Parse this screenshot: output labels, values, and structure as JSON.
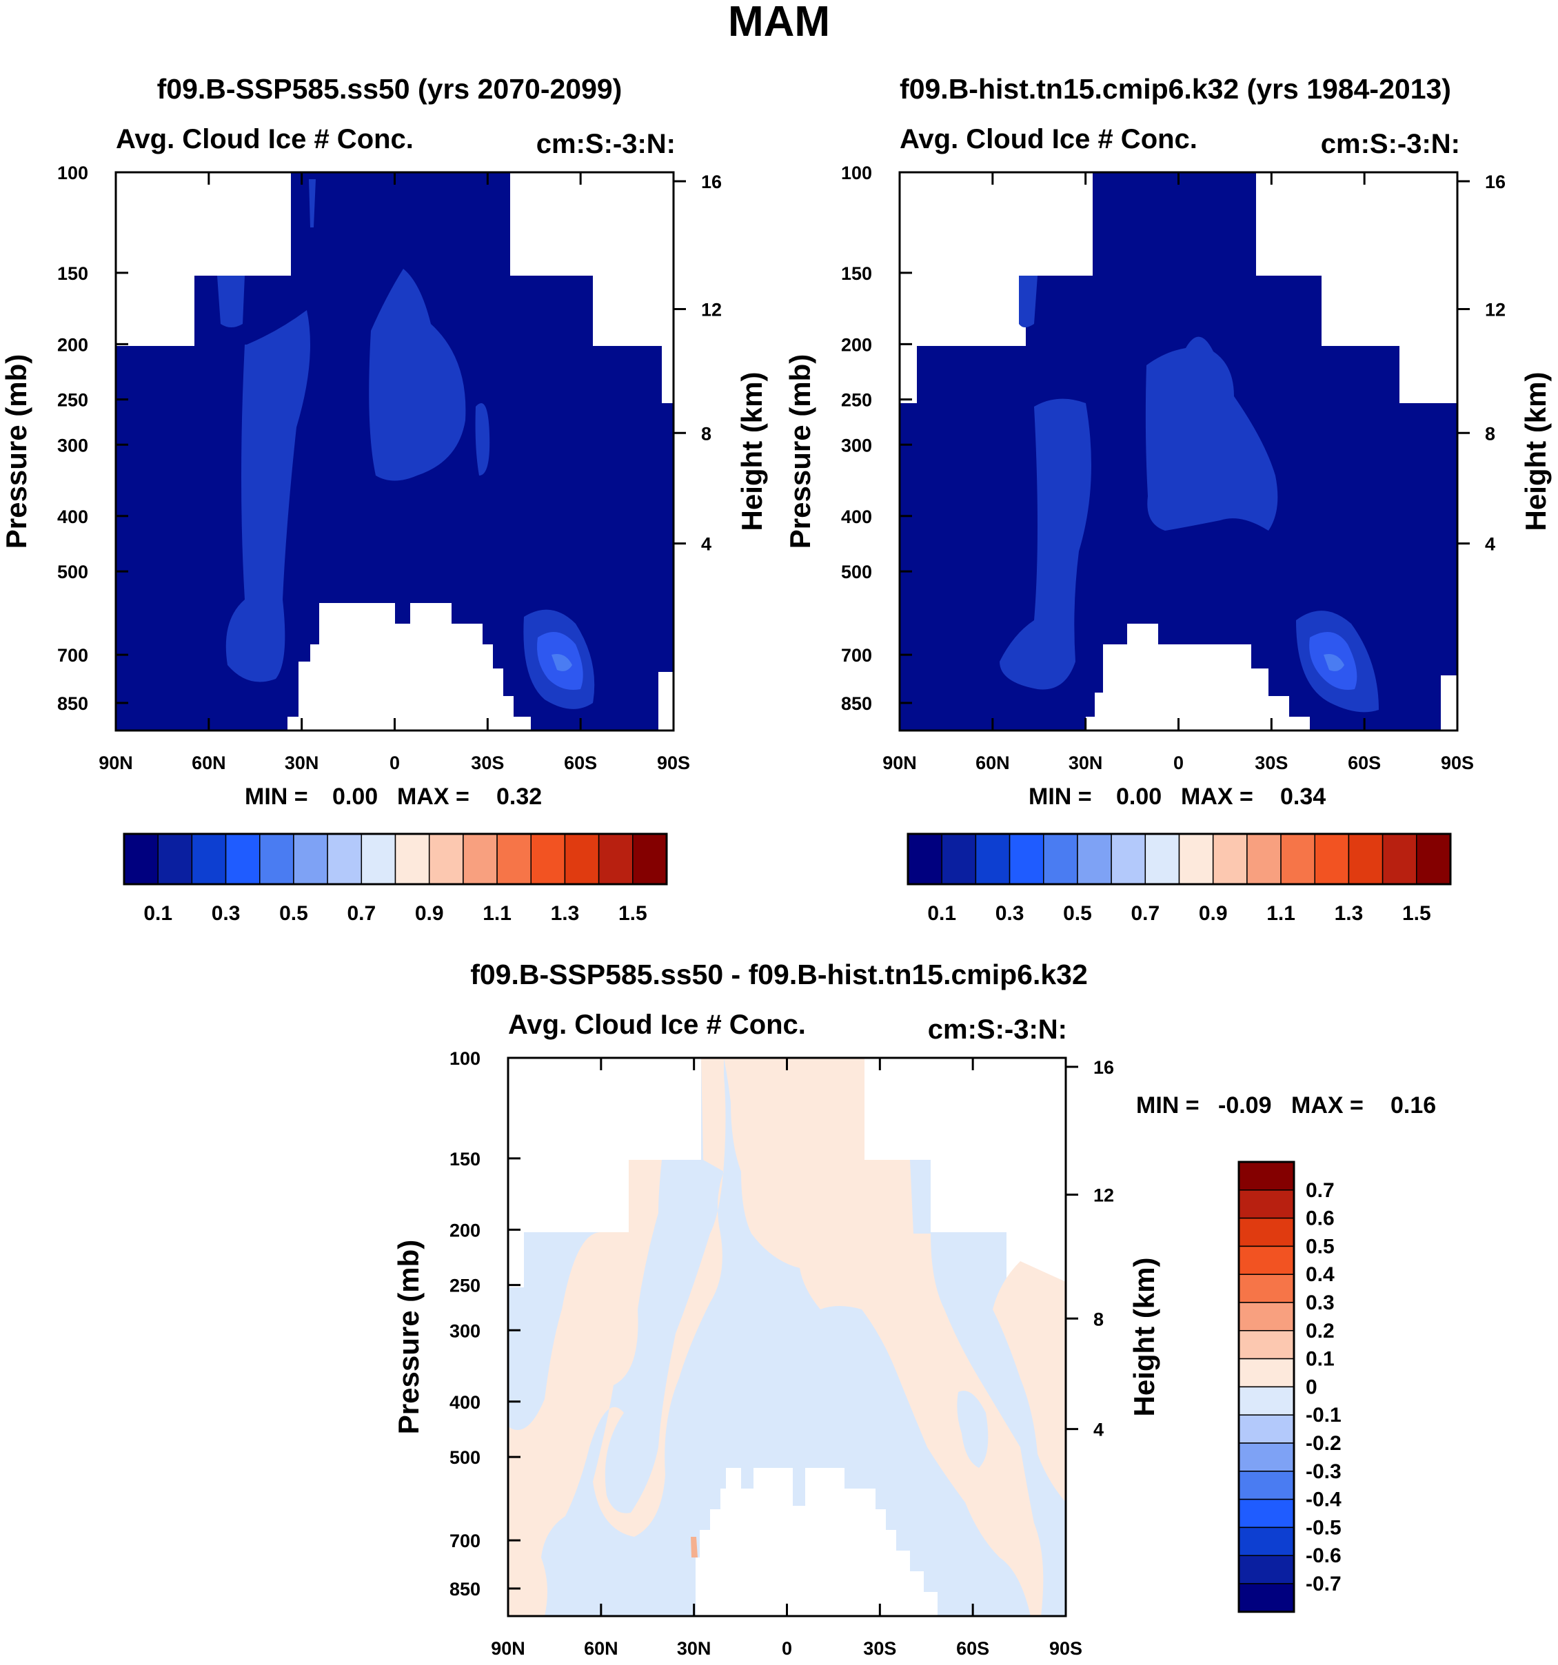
{
  "main_title": "MAM",
  "chart_data": [
    {
      "type": "heatmap",
      "title": "f09.B-SSP585.ss50 (yrs 2070-2099)",
      "left_string": "Avg. Cloud Ice # Conc.",
      "right_string": "cm:S:-3:N:",
      "ylabel": "Pressure (mb)",
      "y2label": "Height (km)",
      "x_ticks": [
        "90N",
        "60N",
        "30N",
        "0",
        "30S",
        "60S",
        "90S"
      ],
      "y_ticks": [
        "100",
        "150",
        "200",
        "250",
        "300",
        "400",
        "500",
        "700",
        "850"
      ],
      "y2_ticks": [
        "16",
        "12",
        "8",
        "4"
      ],
      "min_label": "MIN =",
      "min_value": "0.00",
      "max_label": "MAX =",
      "max_value": "0.32",
      "min": 0.0,
      "max": 0.32,
      "colorbar_labels": [
        "0.1",
        "0.3",
        "0.5",
        "0.7",
        "0.9",
        "1.1",
        "1.3",
        "1.5"
      ],
      "features": {
        "background_level": "0-0.1",
        "max_region": "50S-60S near 700 mb"
      }
    },
    {
      "type": "heatmap",
      "title": "f09.B-hist.tn15.cmip6.k32 (yrs 1984-2013)",
      "left_string": "Avg. Cloud Ice # Conc.",
      "right_string": "cm:S:-3:N:",
      "ylabel": "Pressure (mb)",
      "y2label": "Height (km)",
      "x_ticks": [
        "90N",
        "60N",
        "30N",
        "0",
        "30S",
        "60S",
        "90S"
      ],
      "y_ticks": [
        "100",
        "150",
        "200",
        "250",
        "300",
        "400",
        "500",
        "700",
        "850"
      ],
      "y2_ticks": [
        "16",
        "12",
        "8",
        "4"
      ],
      "min_label": "MIN =",
      "min_value": "0.00",
      "max_label": "MAX =",
      "max_value": "0.34",
      "min": 0.0,
      "max": 0.34,
      "colorbar_labels": [
        "0.1",
        "0.3",
        "0.5",
        "0.7",
        "0.9",
        "1.1",
        "1.3",
        "1.5"
      ],
      "features": {
        "background_level": "0-0.1",
        "max_region": "50S-60S near 700 mb"
      }
    },
    {
      "type": "heatmap",
      "title": "f09.B-SSP585.ss50 - f09.B-hist.tn15.cmip6.k32",
      "left_string": "Avg. Cloud Ice # Conc.",
      "right_string": "cm:S:-3:N:",
      "ylabel": "Pressure (mb)",
      "y2label": "Height (km)",
      "x_ticks": [
        "90N",
        "60N",
        "30N",
        "0",
        "30S",
        "60S",
        "90S"
      ],
      "y_ticks": [
        "100",
        "150",
        "200",
        "250",
        "300",
        "400",
        "500",
        "700",
        "850"
      ],
      "y2_ticks": [
        "16",
        "12",
        "8",
        "4"
      ],
      "min_label": "MIN =",
      "min_value": "-0.09",
      "max_label": "MAX =",
      "max_value": "0.16",
      "min": -0.09,
      "max": 0.16,
      "colorbar_labels": [
        "0.7",
        "0.6",
        "0.5",
        "0.4",
        "0.3",
        "0.2",
        "0.1",
        "0",
        "-0.1",
        "-0.2",
        "-0.3",
        "-0.4",
        "-0.5",
        "-0.6",
        "-0.7"
      ]
    }
  ],
  "colors": {
    "sequential": [
      "#00007f",
      "#0a1fa0",
      "#0d3fd1",
      "#1f5cff",
      "#4a7cf2",
      "#7ea2f5",
      "#b3c9fb",
      "#dce9fb",
      "#fde9dc",
      "#fcc8b0",
      "#f8a07f",
      "#f67548",
      "#f25322",
      "#e03b10",
      "#b82010",
      "#840000"
    ],
    "diverging": [
      "#840000",
      "#b82010",
      "#e03b10",
      "#f25322",
      "#f67548",
      "#f8a07f",
      "#fcc8b0",
      "#fde9dc",
      "#dce9fb",
      "#b3c9fb",
      "#7ea2f5",
      "#4a7cf2",
      "#1f5cff",
      "#0d3fd1",
      "#0a1fa0",
      "#00007f"
    ],
    "panel_fill_main": "#000b8c",
    "panel_fill_light": "#1a3bc4",
    "diff_pos": "#fde9dc",
    "diff_neg": "#d9e8fb",
    "diff_pos_strong": "#f5b08f"
  }
}
